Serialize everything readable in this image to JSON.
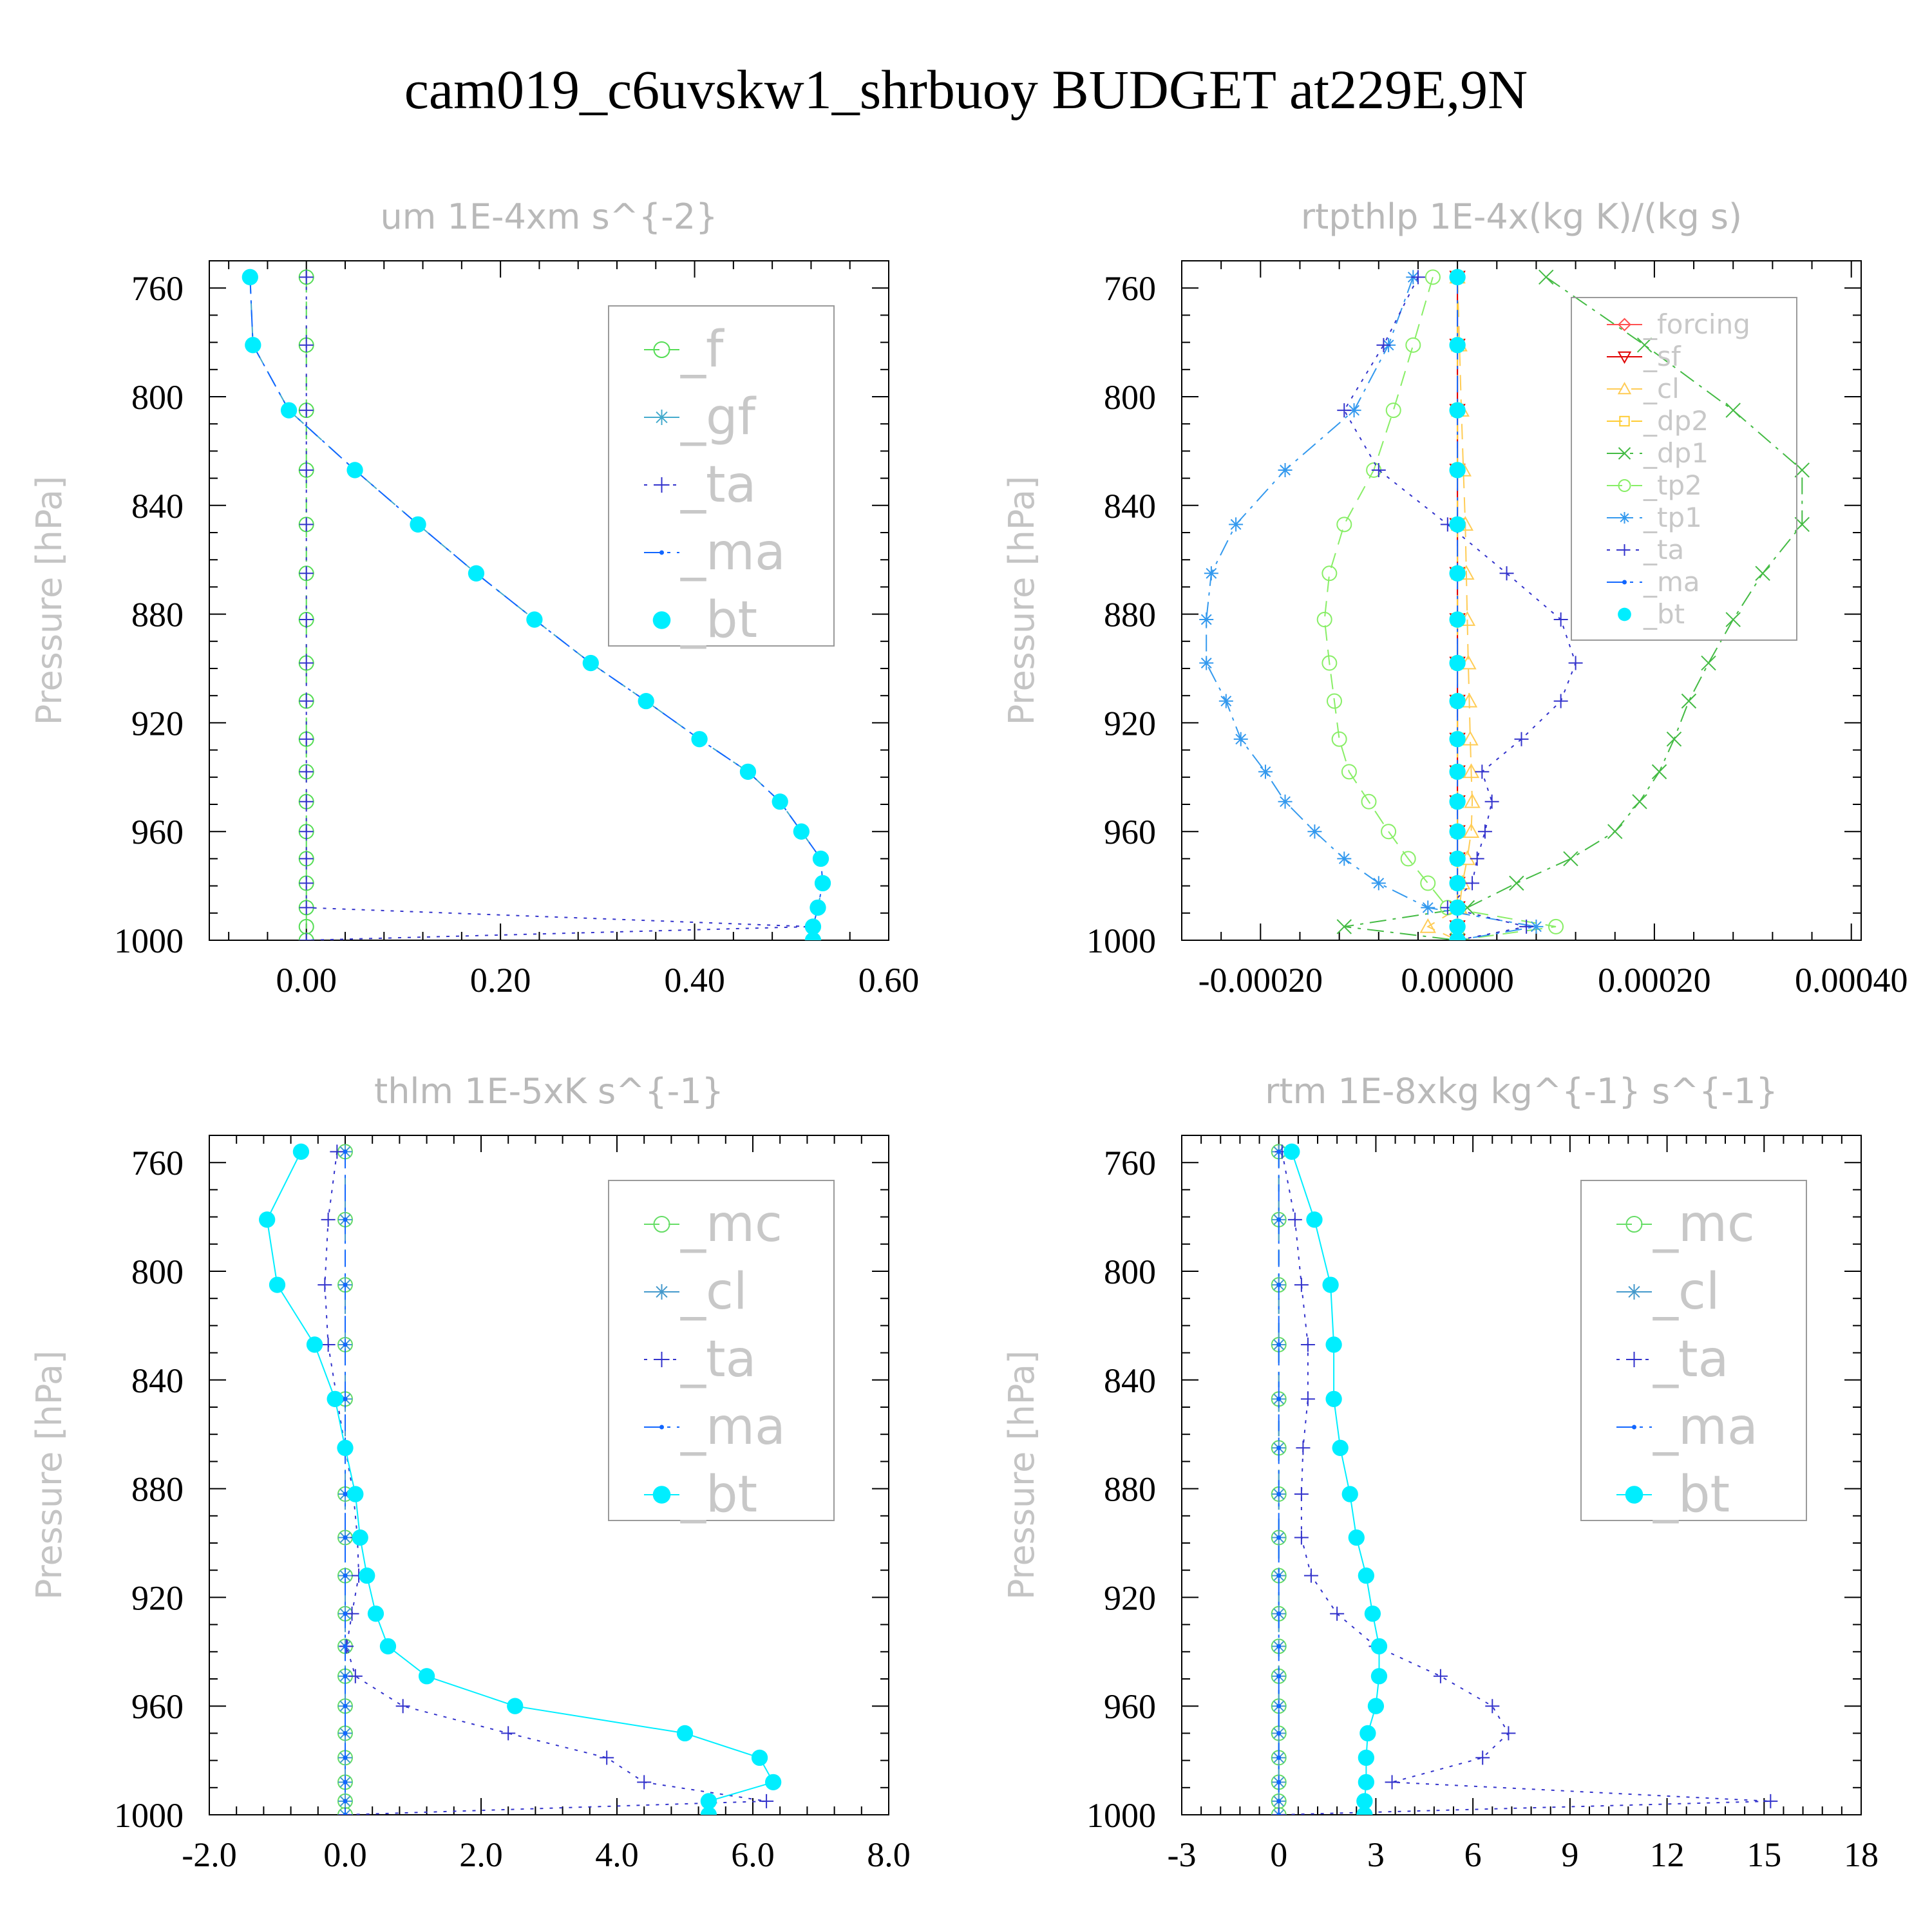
{
  "title": "cam019_c6uvskw1_shrbuoy  BUDGET at229E,9N",
  "colors": {
    "forcing": "#ff5050",
    "sf": "#e00000",
    "cl_light": "#ffcc55",
    "dp2": "#ffcc33",
    "dp1": "#44bb44",
    "tp2": "#88ee66",
    "tp1": "#3399ee",
    "ta": "#3333cc",
    "ma": "#1166ff",
    "bt": "#00eeff",
    "f": "#55dd55",
    "gf": "#44aacc",
    "mc": "#66dd66",
    "cl": "#4499cc"
  },
  "chart_data": [
    {
      "type": "line",
      "title": "um  1E-4xm s^{-2}",
      "ylabel": "Pressure [hPa]",
      "xlim": [
        -0.1,
        0.6
      ],
      "ylim": [
        750,
        1000
      ],
      "xticks": [
        0.0,
        0.2,
        0.4,
        0.6
      ],
      "xtick_labels": [
        "0.00",
        "0.20",
        "0.40",
        "0.60"
      ],
      "yticks": [
        760,
        800,
        840,
        880,
        920,
        960,
        1000
      ],
      "ytick_labels": [
        "760",
        "800",
        "840",
        "880",
        "920",
        "960",
        "1000"
      ],
      "legend_position": "top-right",
      "legend_font": 78,
      "y": [
        756,
        781,
        805,
        827,
        847,
        865,
        882,
        898,
        912,
        926,
        938,
        949,
        960,
        970,
        979,
        988,
        995,
        1000
      ],
      "series": [
        {
          "name": "_f",
          "color": "#55dd55",
          "style": "dashed",
          "marker": "circle-open",
          "x": [
            0,
            0,
            0,
            0,
            0,
            0,
            0,
            0,
            0,
            0,
            0,
            0,
            0,
            0,
            0,
            0,
            0,
            0
          ]
        },
        {
          "name": "_gf",
          "color": "#44aacc",
          "style": "dashed",
          "marker": "star",
          "x": [
            -0.058,
            -0.055,
            -0.018,
            0.05,
            0.115,
            0.175,
            0.235,
            0.293,
            0.35,
            0.405,
            0.455,
            0.488,
            0.51,
            0.53,
            0.532,
            0.527,
            0.522,
            0.522
          ]
        },
        {
          "name": "_ta",
          "color": "#3333cc",
          "style": "dotted",
          "marker": "plus",
          "x": [
            0,
            0,
            0,
            0,
            0,
            0,
            0,
            0,
            0,
            0,
            0,
            0,
            0,
            0,
            0,
            0,
            0.52,
            0
          ]
        },
        {
          "name": "_ma",
          "color": "#1166ff",
          "style": "dashdot",
          "marker": "dot",
          "x": [
            -0.058,
            -0.055,
            -0.018,
            0.05,
            0.115,
            0.175,
            0.235,
            0.293,
            0.35,
            0.405,
            0.455,
            0.488,
            0.51,
            0.53,
            0.532,
            0.527,
            0.522,
            0.522
          ]
        },
        {
          "name": "_bt",
          "color": "#00eeff",
          "style": "none",
          "marker": "circle-filled",
          "x": [
            -0.058,
            -0.055,
            -0.018,
            0.05,
            0.115,
            0.175,
            0.235,
            0.293,
            0.35,
            0.405,
            0.455,
            0.488,
            0.51,
            0.53,
            0.532,
            0.527,
            0.522,
            0.522
          ]
        }
      ]
    },
    {
      "type": "line",
      "title": "rtpthlp  1E-4x(kg K)/(kg s)",
      "ylabel": "Pressure [hPa]",
      "xlim": [
        -0.00028,
        0.00041
      ],
      "ylim": [
        750,
        1000
      ],
      "xticks": [
        -0.0002,
        0.0,
        0.0002,
        0.0004
      ],
      "xtick_labels": [
        "-0.00020",
        "0.00000",
        "0.00020",
        "0.00040"
      ],
      "yticks": [
        760,
        800,
        840,
        880,
        920,
        960,
        1000
      ],
      "ytick_labels": [
        "760",
        "800",
        "840",
        "880",
        "920",
        "960",
        "1000"
      ],
      "legend_position": "top-right",
      "legend_font": 42,
      "y": [
        756,
        781,
        805,
        827,
        847,
        865,
        882,
        898,
        912,
        926,
        938,
        949,
        960,
        970,
        979,
        988,
        995,
        1000
      ],
      "series": [
        {
          "name": "_forcing",
          "color": "#ff5050",
          "style": "solid",
          "marker": "diamond",
          "x": [
            0,
            0,
            0,
            0,
            0,
            0,
            0,
            0,
            0,
            0,
            0,
            0,
            0,
            0,
            0,
            0,
            0,
            0
          ]
        },
        {
          "name": "_sf",
          "color": "#e00000",
          "style": "solid",
          "marker": "triangle-down",
          "x": [
            0,
            0,
            0,
            0,
            0,
            0,
            0,
            0,
            0,
            0,
            0,
            0,
            0,
            0,
            0,
            0,
            0,
            0
          ]
        },
        {
          "name": "_cl",
          "color": "#ffcc55",
          "style": "dashed",
          "marker": "triangle-up",
          "x": [
            0,
            2e-06,
            4e-06,
            6e-06,
            8e-06,
            9e-06,
            1e-05,
            1.1e-05,
            1.2e-05,
            1.3e-05,
            1.4e-05,
            1.5e-05,
            1.4e-05,
            1e-05,
            5e-06,
            2e-06,
            -3e-05,
            0
          ]
        },
        {
          "name": "_dp2",
          "color": "#ffcc33",
          "style": "dashed",
          "marker": "square-open",
          "x": [
            0,
            0,
            0,
            0,
            0,
            0,
            0,
            0,
            0,
            0,
            0,
            0,
            0,
            0,
            0,
            0,
            0,
            0
          ]
        },
        {
          "name": "_dp1",
          "color": "#44bb44",
          "style": "dashdot",
          "marker": "cross",
          "x": [
            9e-05,
            0.00019,
            0.00028,
            0.00035,
            0.00035,
            0.00031,
            0.00028,
            0.000255,
            0.000235,
            0.00022,
            0.000205,
            0.000185,
            0.00016,
            0.000115,
            6e-05,
            1e-05,
            -0.000115,
            0
          ]
        },
        {
          "name": "_tp2",
          "color": "#88ee66",
          "style": "dashed",
          "marker": "circle-open",
          "x": [
            -2.5e-05,
            -4.5e-05,
            -6.5e-05,
            -8.5e-05,
            -0.000115,
            -0.00013,
            -0.000135,
            -0.00013,
            -0.000125,
            -0.00012,
            -0.00011,
            -9e-05,
            -7e-05,
            -5e-05,
            -3e-05,
            -1e-05,
            0.0001,
            0
          ]
        },
        {
          "name": "_tp1",
          "color": "#3399ee",
          "style": "dashdot",
          "marker": "star",
          "x": [
            -4.5e-05,
            -7e-05,
            -0.000105,
            -0.000175,
            -0.000225,
            -0.00025,
            -0.000255,
            -0.000255,
            -0.000235,
            -0.00022,
            -0.000195,
            -0.000175,
            -0.000145,
            -0.000115,
            -8e-05,
            -3e-05,
            8e-05,
            0
          ]
        },
        {
          "name": "_ta",
          "color": "#3333cc",
          "style": "dotted",
          "marker": "plus",
          "x": [
            -4e-05,
            -7.5e-05,
            -0.000115,
            -8e-05,
            -1e-05,
            5e-05,
            0.000105,
            0.00012,
            0.000105,
            6.5e-05,
            2.5e-05,
            3.5e-05,
            2.8e-05,
            2e-05,
            1.5e-05,
            -1e-05,
            7e-05,
            0
          ]
        },
        {
          "name": "_ma",
          "color": "#1166ff",
          "style": "dashdot",
          "marker": "dot",
          "x": [
            0,
            0,
            0,
            0,
            0,
            0,
            0,
            0,
            0,
            0,
            0,
            0,
            0,
            0,
            0,
            0,
            0,
            0
          ]
        },
        {
          "name": "_bt",
          "color": "#00eeff",
          "style": "none",
          "marker": "circle-filled",
          "x": [
            0,
            0,
            0,
            0,
            0,
            0,
            0,
            0,
            0,
            0,
            0,
            0,
            0,
            0,
            0,
            0,
            0,
            0
          ]
        }
      ]
    },
    {
      "type": "line",
      "title": "thlm  1E-5xK s^{-1}",
      "ylabel": "Pressure [hPa]",
      "xlim": [
        -2.0,
        8.0
      ],
      "ylim": [
        750,
        1000
      ],
      "xticks": [
        -2.0,
        0.0,
        2.0,
        4.0,
        6.0,
        8.0
      ],
      "xtick_labels": [
        "-2.0",
        "0.0",
        "2.0",
        "4.0",
        "6.0",
        "8.0"
      ],
      "yticks": [
        760,
        800,
        840,
        880,
        920,
        960,
        1000
      ],
      "ytick_labels": [
        "760",
        "800",
        "840",
        "880",
        "920",
        "960",
        "1000"
      ],
      "legend_position": "top-right",
      "legend_font": 78,
      "y": [
        756,
        781,
        805,
        827,
        847,
        865,
        882,
        898,
        912,
        926,
        938,
        949,
        960,
        970,
        979,
        988,
        995,
        1000
      ],
      "series": [
        {
          "name": "_mc",
          "color": "#66dd66",
          "style": "dashed",
          "marker": "circle-open",
          "x": [
            0,
            0,
            0,
            0,
            0,
            0,
            0,
            0,
            0,
            0,
            0,
            0,
            0,
            0,
            0,
            0,
            0,
            0
          ]
        },
        {
          "name": "_cl",
          "color": "#4499cc",
          "style": "dashed",
          "marker": "star",
          "x": [
            0,
            0,
            0,
            0,
            0,
            0,
            0,
            0,
            0,
            0,
            0,
            0,
            0,
            0,
            0,
            0,
            0,
            0
          ]
        },
        {
          "name": "_ta",
          "color": "#3333cc",
          "style": "dotted",
          "marker": "plus",
          "x": [
            -0.12,
            -0.25,
            -0.3,
            -0.25,
            -0.12,
            0,
            0.12,
            0.18,
            0.2,
            0.1,
            0.02,
            0.15,
            0.85,
            2.4,
            3.85,
            4.4,
            6.2,
            0
          ]
        },
        {
          "name": "_ma",
          "color": "#1166ff",
          "style": "dashdot",
          "marker": "dot",
          "x": [
            0,
            0,
            0,
            0,
            0,
            0,
            0,
            0,
            0,
            0,
            0,
            0,
            0,
            0,
            0,
            0,
            0,
            0
          ]
        },
        {
          "name": "_bt",
          "color": "#00eeff",
          "style": "solid",
          "marker": "circle-filled",
          "x": [
            -0.65,
            -1.15,
            -1.0,
            -0.45,
            -0.15,
            0.0,
            0.15,
            0.22,
            0.32,
            0.45,
            0.63,
            1.2,
            2.5,
            5.0,
            6.1,
            6.3,
            5.35,
            5.35
          ]
        }
      ]
    },
    {
      "type": "line",
      "title": "rtm  1E-8xkg kg^{-1} s^{-1}",
      "ylabel": "Pressure [hPa]",
      "xlim": [
        -3,
        18
      ],
      "ylim": [
        750,
        1000
      ],
      "xticks": [
        -3,
        0,
        3,
        6,
        9,
        12,
        15,
        18
      ],
      "xtick_labels": [
        "-3",
        "0",
        "3",
        "6",
        "9",
        "12",
        "15",
        "18"
      ],
      "yticks": [
        760,
        800,
        840,
        880,
        920,
        960,
        1000
      ],
      "ytick_labels": [
        "760",
        "800",
        "840",
        "880",
        "920",
        "960",
        "1000"
      ],
      "legend_position": "top-right",
      "legend_font": 78,
      "y": [
        756,
        781,
        805,
        827,
        847,
        865,
        882,
        898,
        912,
        926,
        938,
        949,
        960,
        970,
        979,
        988,
        995,
        1000
      ],
      "series": [
        {
          "name": "_mc",
          "color": "#66dd66",
          "style": "dashed",
          "marker": "circle-open",
          "x": [
            0,
            0,
            0,
            0,
            0,
            0,
            0,
            0,
            0,
            0,
            0,
            0,
            0,
            0,
            0,
            0,
            0,
            0
          ]
        },
        {
          "name": "_cl",
          "color": "#4499cc",
          "style": "dashed",
          "marker": "star",
          "x": [
            0,
            0,
            0,
            0,
            0,
            0,
            0,
            0,
            0,
            0,
            0,
            0,
            0,
            0,
            0,
            0,
            0,
            0
          ]
        },
        {
          "name": "_ta",
          "color": "#3333cc",
          "style": "dotted",
          "marker": "plus",
          "x": [
            0.1,
            0.5,
            0.7,
            0.9,
            0.9,
            0.75,
            0.7,
            0.7,
            1.0,
            1.8,
            3.0,
            5.0,
            6.6,
            7.1,
            6.3,
            3.5,
            15.2,
            0
          ]
        },
        {
          "name": "_ma",
          "color": "#1166ff",
          "style": "dashdot",
          "marker": "dot",
          "x": [
            0,
            0,
            0,
            0,
            0,
            0,
            0,
            0,
            0,
            0,
            0,
            0,
            0,
            0,
            0,
            0,
            0,
            0
          ]
        },
        {
          "name": "_bt",
          "color": "#00eeff",
          "style": "solid",
          "marker": "circle-filled",
          "x": [
            0.4,
            1.1,
            1.6,
            1.7,
            1.7,
            1.9,
            2.2,
            2.4,
            2.7,
            2.9,
            3.1,
            3.1,
            3.0,
            2.75,
            2.7,
            2.7,
            2.65,
            2.65
          ]
        }
      ]
    }
  ]
}
